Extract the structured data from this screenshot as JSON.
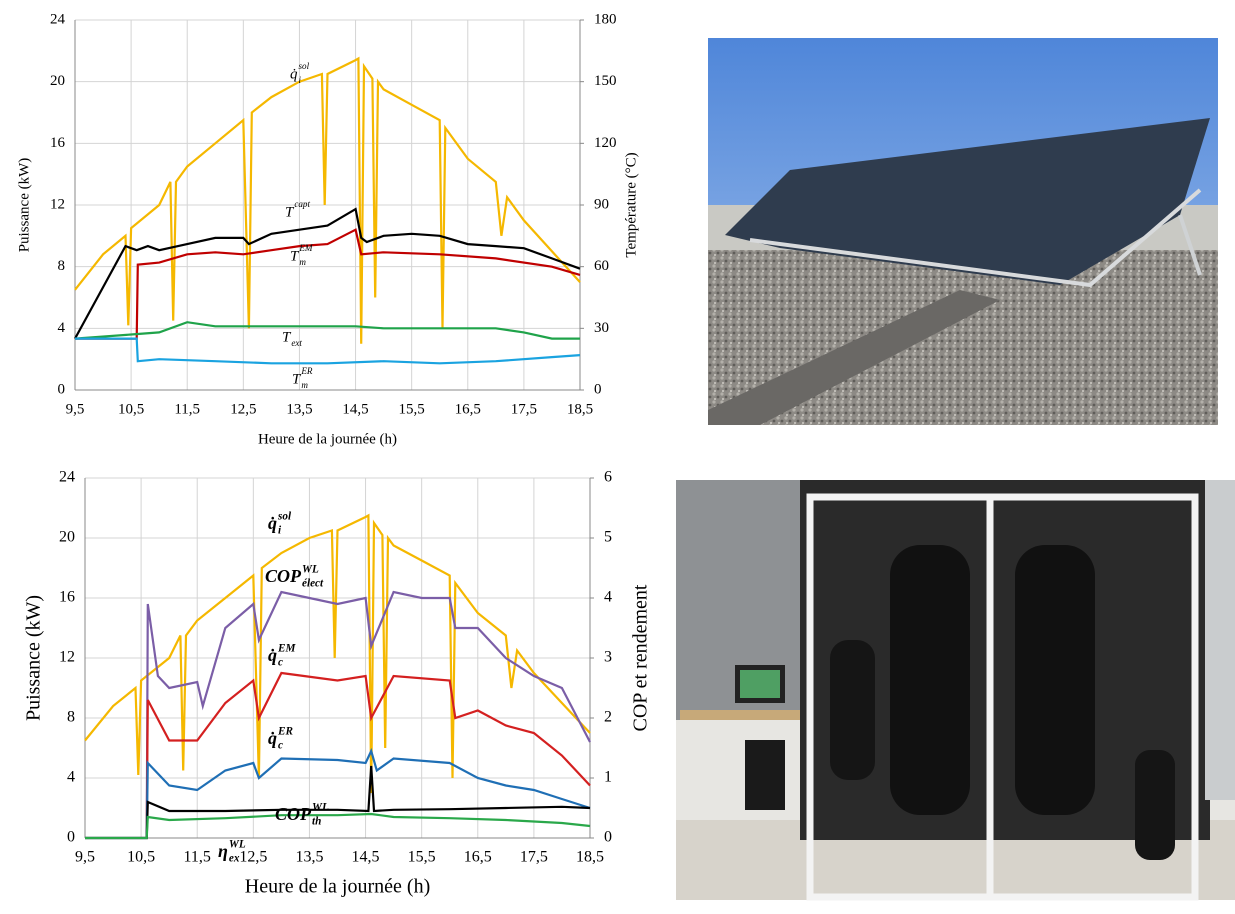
{
  "chart_data": [
    {
      "type": "line",
      "xlabel": "Heure de la journée (h)",
      "ylabel": "Puissance (kW)",
      "y2label": "Température (°C)",
      "xlim": [
        9.5,
        18.5
      ],
      "xticks": [
        {
          "value": 9.5,
          "label": "9,5"
        },
        {
          "value": 10.5,
          "label": "10,5"
        },
        {
          "value": 11.5,
          "label": "11,5"
        },
        {
          "value": 12.5,
          "label": "12,5"
        },
        {
          "value": 13.5,
          "label": "13,5"
        },
        {
          "value": 14.5,
          "label": "14,5"
        },
        {
          "value": 15.5,
          "label": "15,5"
        },
        {
          "value": 16.5,
          "label": "16,5"
        },
        {
          "value": 17.5,
          "label": "17,5"
        },
        {
          "value": 18.5,
          "label": "18,5"
        }
      ],
      "ylim": [
        0,
        24
      ],
      "yticks": [
        0,
        4,
        8,
        12,
        16,
        20,
        24
      ],
      "y2lim": [
        0,
        180
      ],
      "y2ticks": [
        0,
        30,
        60,
        90,
        120,
        150,
        180
      ],
      "grid": true,
      "series": [
        {
          "label": {
            "base": "q̇",
            "sub": "i",
            "sup": "sol"
          },
          "color": "#f5b800",
          "axis": "y",
          "x": [
            9.5,
            10,
            10.4,
            10.45,
            10.5,
            11,
            11.2,
            11.25,
            11.3,
            11.5,
            12,
            12.5,
            12.6,
            12.65,
            13,
            13.5,
            13.9,
            13.95,
            14,
            14.5,
            14.55,
            14.6,
            14.65,
            14.8,
            14.85,
            14.9,
            15,
            15.5,
            16,
            16.05,
            16.1,
            16.5,
            17,
            17.1,
            17.2,
            17.5,
            18,
            18.5
          ],
          "values": [
            6.5,
            8.8,
            10,
            4.2,
            10.5,
            12,
            13.5,
            4.5,
            13.5,
            14.5,
            16,
            17.5,
            4,
            18,
            19,
            20,
            20.5,
            12,
            20.5,
            21.4,
            21.5,
            3,
            21,
            20.2,
            6,
            20,
            19.5,
            18.5,
            17.5,
            4,
            17,
            15,
            13.5,
            10,
            12.5,
            11,
            9,
            7
          ]
        },
        {
          "label": {
            "base": "T",
            "sub": "",
            "sup": "capt"
          },
          "color": "#000000",
          "axis": "y2",
          "x": [
            9.5,
            10.4,
            10.6,
            10.8,
            11,
            11.5,
            12,
            12.5,
            12.6,
            13,
            13.5,
            14,
            14.5,
            14.6,
            14.7,
            15,
            15.5,
            16,
            16.5,
            17,
            17.5,
            18,
            18.5
          ],
          "values": [
            25,
            70,
            68,
            70,
            68,
            71,
            74,
            74,
            71,
            76,
            78,
            80,
            88,
            74,
            72,
            75,
            76,
            75,
            71,
            70,
            69,
            64,
            59
          ]
        },
        {
          "label": {
            "base": "T",
            "sub": "m",
            "sup": "EM"
          },
          "color": "#c00000",
          "axis": "y2",
          "x": [
            9.5,
            10.6,
            10.62,
            11,
            11.5,
            12,
            12.5,
            13,
            13.5,
            14,
            14.5,
            14.6,
            15,
            16,
            17,
            18,
            18.5
          ],
          "values": [
            25,
            25,
            61,
            62,
            66,
            67,
            66,
            68,
            70,
            71,
            78,
            66,
            67,
            66,
            64,
            60,
            56
          ]
        },
        {
          "label": {
            "base": "T",
            "sub": "ext",
            "sup": ""
          },
          "color": "#1fa34a",
          "axis": "y2",
          "x": [
            9.5,
            10.5,
            11,
            11.5,
            12,
            12.5,
            13,
            14,
            14.5,
            15,
            16,
            17,
            17.5,
            18,
            18.5
          ],
          "values": [
            25,
            27,
            28,
            33,
            31,
            31,
            31,
            31,
            31,
            30,
            30,
            30,
            28,
            25,
            25
          ]
        },
        {
          "label": {
            "base": "T",
            "sub": "m",
            "sup": "ER"
          },
          "color": "#1aa3e0",
          "axis": "y2",
          "x": [
            9.5,
            10.6,
            10.62,
            11,
            12,
            13,
            14,
            15,
            16,
            17,
            18,
            18.5
          ],
          "values": [
            25,
            25,
            14,
            15,
            14,
            13,
            13,
            14,
            13,
            14,
            16,
            17
          ]
        }
      ]
    },
    {
      "type": "line",
      "xlabel": "Heure de la journée (h)",
      "ylabel": "Puissance (kW)",
      "y2label": "COP et rendement",
      "xlim": [
        9.5,
        18.5
      ],
      "xticks": [
        {
          "value": 9.5,
          "label": "9,5"
        },
        {
          "value": 10.5,
          "label": "10,5"
        },
        {
          "value": 11.5,
          "label": "11,5"
        },
        {
          "value": 12.5,
          "label": "12,5"
        },
        {
          "value": 13.5,
          "label": "13,5"
        },
        {
          "value": 14.5,
          "label": "14,5"
        },
        {
          "value": 15.5,
          "label": "15,5"
        },
        {
          "value": 16.5,
          "label": "16,5"
        },
        {
          "value": 17.5,
          "label": "17,5"
        },
        {
          "value": 18.5,
          "label": "18,5"
        }
      ],
      "ylim": [
        0,
        24
      ],
      "yticks": [
        0,
        4,
        8,
        12,
        16,
        20,
        24
      ],
      "y2lim": [
        0,
        6
      ],
      "y2ticks": [
        0,
        1,
        2,
        3,
        4,
        5,
        6
      ],
      "grid": true,
      "series": [
        {
          "label": {
            "base": "q̇",
            "sub": "i",
            "sup": "sol"
          },
          "color": "#f5b800",
          "axis": "y",
          "x": [
            9.5,
            10,
            10.4,
            10.45,
            10.5,
            11,
            11.2,
            11.25,
            11.3,
            11.5,
            12,
            12.5,
            12.6,
            12.65,
            13,
            13.5,
            13.9,
            13.95,
            14,
            14.5,
            14.55,
            14.6,
            14.65,
            14.8,
            14.85,
            14.9,
            15,
            15.5,
            16,
            16.05,
            16.1,
            16.5,
            17,
            17.1,
            17.2,
            17.5,
            18,
            18.5
          ],
          "values": [
            6.5,
            8.8,
            10,
            4.2,
            10.5,
            12,
            13.5,
            4.5,
            13.5,
            14.5,
            16,
            17.5,
            4,
            18,
            19,
            20,
            20.5,
            12,
            20.5,
            21.4,
            21.5,
            3,
            21,
            20.2,
            6,
            20,
            19.5,
            18.5,
            17.5,
            4,
            17,
            15,
            13.5,
            10,
            12.5,
            11,
            9,
            7
          ]
        },
        {
          "label": {
            "base": "COP",
            "sub": "élect",
            "sup": "WL"
          },
          "color": "#7b5ea7",
          "axis": "y2",
          "x": [
            9.5,
            10.6,
            10.62,
            10.8,
            11,
            11.5,
            11.6,
            12,
            12.5,
            12.6,
            13,
            13.5,
            14,
            14.5,
            14.6,
            15,
            15.5,
            16,
            16.1,
            16.5,
            17,
            17.5,
            18,
            18.5
          ],
          "values": [
            0,
            0,
            3.9,
            2.7,
            2.5,
            2.6,
            2.2,
            3.5,
            3.9,
            3.3,
            4.1,
            4,
            3.9,
            4,
            3.2,
            4.1,
            4,
            4,
            3.5,
            3.5,
            3,
            2.7,
            2.5,
            1.6
          ]
        },
        {
          "label": {
            "base": "q̇",
            "sub": "c",
            "sup": "EM"
          },
          "color": "#d42020",
          "axis": "y",
          "x": [
            10.6,
            10.62,
            11,
            11.5,
            12,
            12.5,
            12.6,
            13,
            14,
            14.5,
            14.6,
            15,
            16,
            16.1,
            16.5,
            17,
            17.5,
            18,
            18.5
          ],
          "values": [
            0,
            9.2,
            6.5,
            6.5,
            9,
            10.5,
            8,
            11,
            10.5,
            10.8,
            8,
            10.8,
            10.5,
            8,
            8.5,
            7.5,
            7,
            5.5,
            3.5
          ]
        },
        {
          "label": {
            "base": "q̇",
            "sub": "c",
            "sup": "ER"
          },
          "color": "#1f6fb5",
          "axis": "y",
          "x": [
            10.6,
            10.62,
            11,
            11.5,
            12,
            12.5,
            12.6,
            13,
            14,
            14.5,
            14.6,
            14.7,
            15,
            16,
            16.5,
            17,
            17.5,
            18,
            18.5
          ],
          "values": [
            0,
            5,
            3.5,
            3.2,
            4.5,
            5,
            4,
            5.3,
            5.2,
            5,
            5.8,
            4.5,
            5.3,
            5,
            4,
            3.5,
            3.2,
            2.6,
            2
          ]
        },
        {
          "label": {
            "base": "COP",
            "sub": "th",
            "sup": "WL"
          },
          "color": "#000000",
          "axis": "y2",
          "x": [
            9.5,
            10.6,
            10.62,
            11,
            12,
            13,
            14,
            14.55,
            14.6,
            14.65,
            15,
            16,
            17,
            18,
            18.5
          ],
          "values": [
            0,
            0,
            0.6,
            0.45,
            0.45,
            0.47,
            0.47,
            0.45,
            1.2,
            0.45,
            0.47,
            0.48,
            0.5,
            0.52,
            0.5
          ]
        },
        {
          "label": {
            "base": "η",
            "sub": "ex",
            "sup": "WL"
          },
          "color": "#2aa84a",
          "axis": "y2",
          "x": [
            9.5,
            10.6,
            10.62,
            11,
            12,
            13,
            14,
            14.6,
            15,
            16,
            17,
            18,
            18.5
          ],
          "values": [
            0,
            0,
            0.35,
            0.3,
            0.33,
            0.38,
            0.38,
            0.4,
            0.35,
            0.33,
            0.3,
            0.25,
            0.2
          ]
        }
      ]
    }
  ]
}
